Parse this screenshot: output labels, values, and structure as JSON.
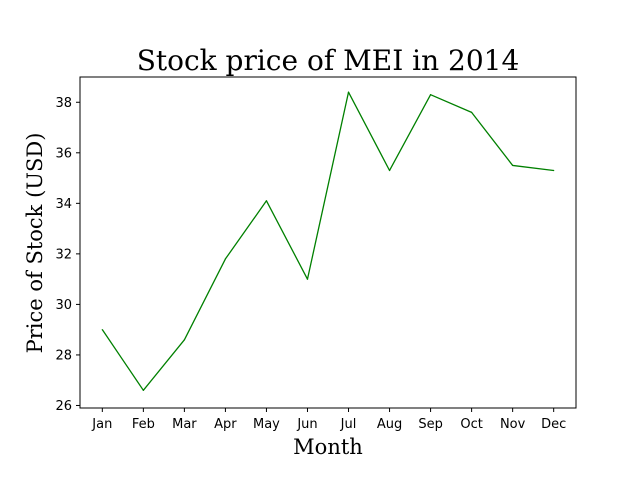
{
  "chart_data": {
    "type": "line",
    "title": "Stock price of MEI in 2014",
    "xlabel": "Month",
    "ylabel": "Price of Stock (USD)",
    "categories": [
      "Jan",
      "Feb",
      "Mar",
      "Apr",
      "May",
      "Jun",
      "Jul",
      "Aug",
      "Sep",
      "Oct",
      "Nov",
      "Dec"
    ],
    "series": [
      {
        "values": [
          29.0,
          26.6,
          28.6,
          31.8,
          34.1,
          31.0,
          38.4,
          35.3,
          38.3,
          37.6,
          35.5,
          35.3
        ],
        "color": "#008000"
      }
    ],
    "ylim": [
      25.9,
      39.0
    ],
    "yticks": [
      26,
      28,
      30,
      32,
      34,
      36,
      38
    ],
    "grid": false,
    "legend": false
  }
}
